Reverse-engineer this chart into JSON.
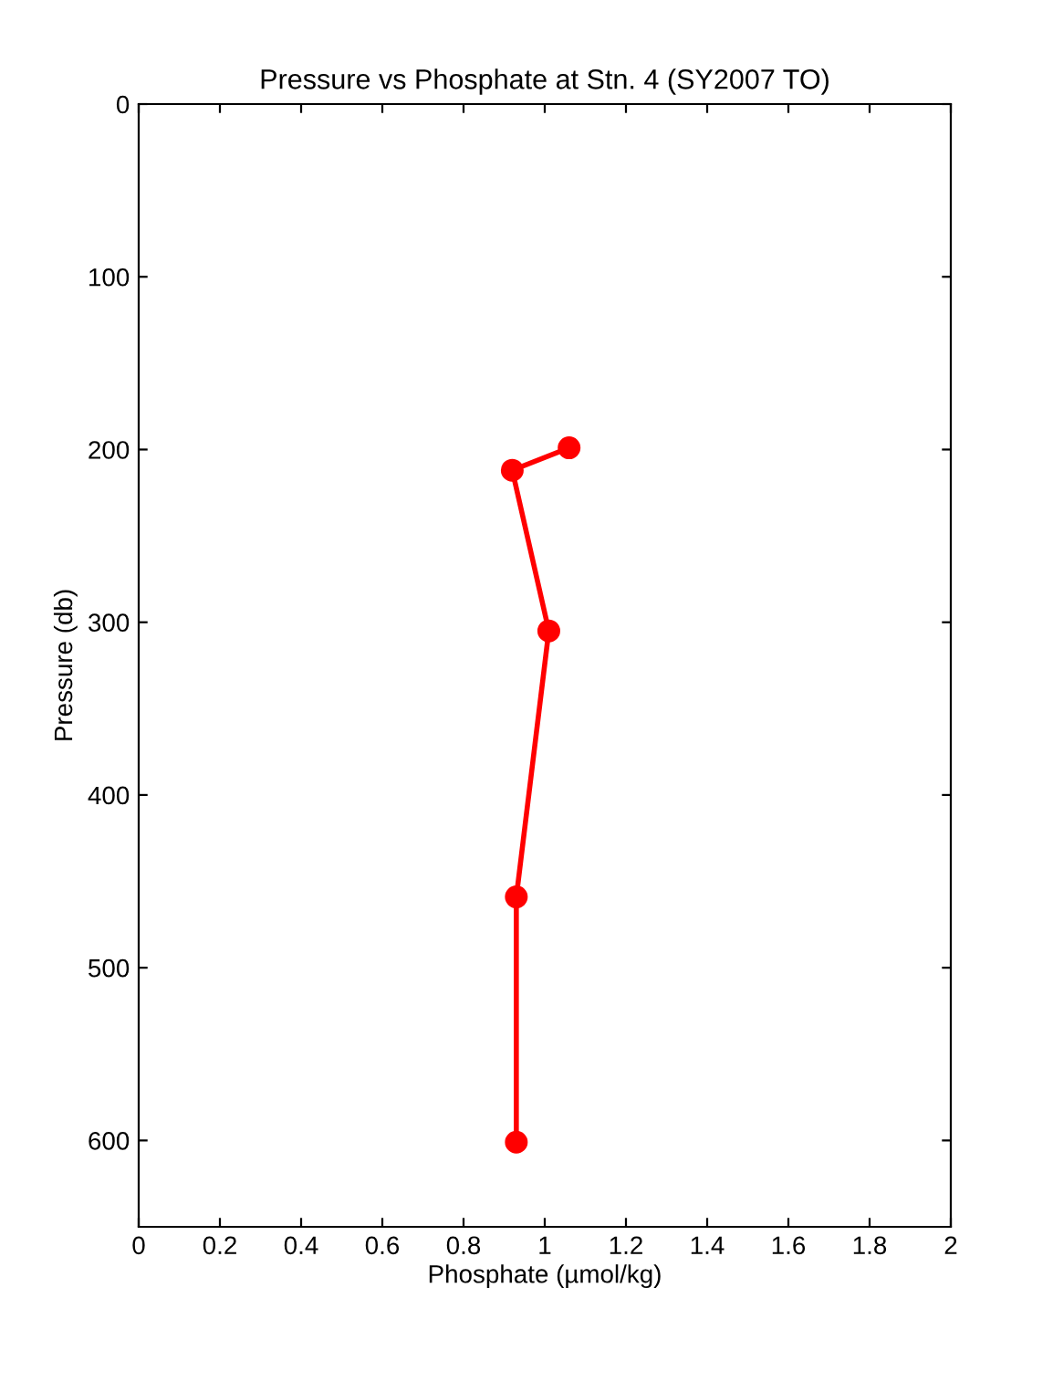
{
  "chart_data": {
    "type": "line",
    "title": "Pressure vs Phosphate at Stn. 4 (SY2007 TO)",
    "xlabel": "Phosphate (µmol/kg)",
    "ylabel": "Pressure (db)",
    "x": [
      1.06,
      0.92,
      1.01,
      0.93,
      0.93
    ],
    "series": [
      {
        "color": "#ff0000",
        "values": [
          199,
          212,
          305,
          459,
          601
        ]
      }
    ],
    "xlim": [
      0,
      2
    ],
    "xticks": [
      0,
      0.2,
      0.4,
      0.6,
      0.8,
      1,
      1.2,
      1.4,
      1.6,
      1.8,
      2
    ],
    "ylim": [
      650,
      0
    ],
    "yticks": [
      0,
      100,
      200,
      300,
      400,
      500,
      600
    ],
    "marker": "circle",
    "line_style": "solid",
    "grid": false,
    "legend": false
  }
}
